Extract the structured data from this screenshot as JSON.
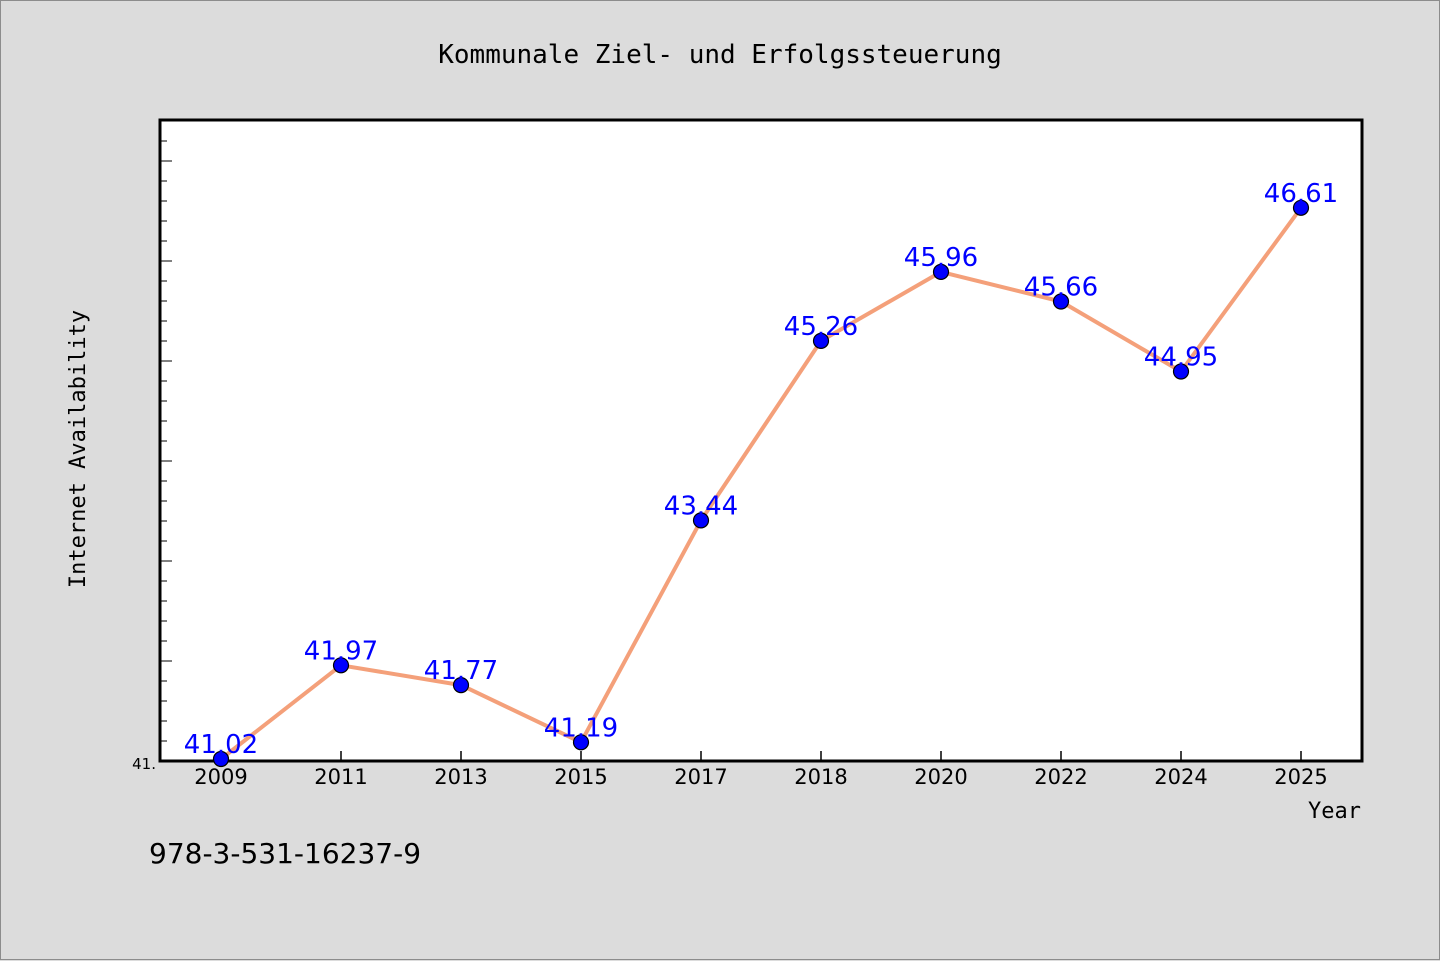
{
  "chart_data": {
    "type": "line",
    "title": "Kommunale Ziel- und Erfolgssteuerung",
    "xlabel": "Year",
    "ylabel": "Internet Availability",
    "categories": [
      "2009",
      "2011",
      "2013",
      "2015",
      "2017",
      "2018",
      "2020",
      "2022",
      "2024",
      "2025"
    ],
    "series": [
      {
        "values": [
          41.02,
          41.97,
          41.77,
          41.19,
          43.44,
          45.26,
          45.96,
          45.66,
          44.95,
          46.61
        ],
        "labels": [
          "41.02",
          "41.97",
          "41.77",
          "41.19",
          "43.44",
          "45.26",
          "45.96",
          "45.66",
          "44.95",
          "46.61"
        ]
      }
    ],
    "ylim": [
      41.0,
      47.5
    ],
    "y_tick_label": "41.",
    "grid": false,
    "line_color": "#f4a07a",
    "marker_color": "#0000ff",
    "label_color": "#0000ff"
  },
  "footer_text": "978-3-531-16237-9"
}
